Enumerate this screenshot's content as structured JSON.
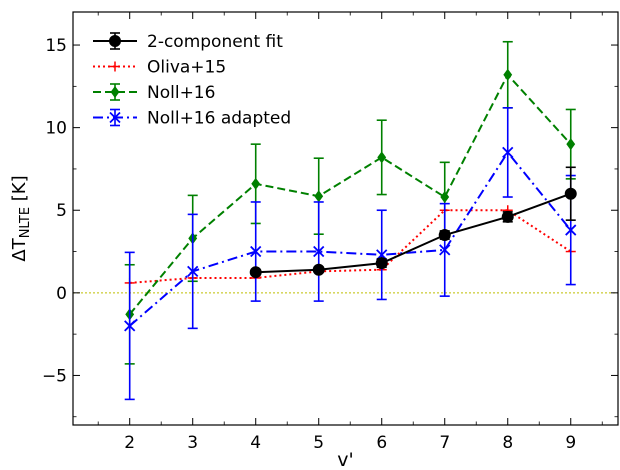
{
  "chart_data": {
    "type": "line",
    "xlabel": "v'",
    "ylabel": {
      "main": "ΔT",
      "sub": "NLTE",
      "unit": " [K]"
    },
    "xlim": [
      1.1,
      9.75
    ],
    "ylim": [
      -8,
      17
    ],
    "xticks": [
      "2",
      "3",
      "4",
      "5",
      "6",
      "7",
      "8",
      "9"
    ],
    "yticks": [
      "−5",
      "0",
      "5",
      "10",
      "15"
    ],
    "ytick_values": [
      -5,
      0,
      5,
      10,
      15
    ],
    "zero_line": 0,
    "grid": false,
    "legend_position": "top-left",
    "series": [
      {
        "name": "2-component fit",
        "color": "#000000",
        "linestyle": "solid",
        "marker": "circle",
        "points": [
          {
            "x": 4,
            "y": 1.25,
            "err": 0.15
          },
          {
            "x": 5,
            "y": 1.4,
            "err": 0.15
          },
          {
            "x": 6,
            "y": 1.8,
            "err": 0.25
          },
          {
            "x": 7,
            "y": 3.5,
            "err": 0.25
          },
          {
            "x": 8,
            "y": 4.6,
            "err": 0.3
          },
          {
            "x": 9,
            "y": 6.0,
            "err": 1.6
          }
        ]
      },
      {
        "name": "Oliva+15",
        "color": "#ff0000",
        "linestyle": "dotted",
        "marker": "plus",
        "points": [
          {
            "x": 2,
            "y": 0.6
          },
          {
            "x": 3,
            "y": 0.9
          },
          {
            "x": 4,
            "y": 0.9
          },
          {
            "x": 5,
            "y": 1.3
          },
          {
            "x": 6,
            "y": 1.4
          },
          {
            "x": 7,
            "y": 5.0
          },
          {
            "x": 8,
            "y": 5.0
          },
          {
            "x": 9,
            "y": 2.5
          }
        ]
      },
      {
        "name": "Noll+16",
        "color": "#008000",
        "linestyle": "dashed",
        "marker": "diamond",
        "points": [
          {
            "x": 2,
            "y": -1.3,
            "err": 3.0
          },
          {
            "x": 3,
            "y": 3.3,
            "err": 2.6
          },
          {
            "x": 4,
            "y": 6.6,
            "err": 2.4
          },
          {
            "x": 5,
            "y": 5.85,
            "err": 2.3
          },
          {
            "x": 6,
            "y": 8.2,
            "err": 2.25
          },
          {
            "x": 7,
            "y": 5.8,
            "err": 2.1
          },
          {
            "x": 8,
            "y": 13.2,
            "err": 2.0
          },
          {
            "x": 9,
            "y": 9.0,
            "err": 2.1
          }
        ]
      },
      {
        "name": "Noll+16 adapted",
        "color": "#0000ff",
        "linestyle": "dashdot",
        "marker": "x",
        "points": [
          {
            "x": 2,
            "y": -2.0,
            "err": 4.45
          },
          {
            "x": 3,
            "y": 1.3,
            "err": 3.45
          },
          {
            "x": 4,
            "y": 2.5,
            "err": 3.0
          },
          {
            "x": 5,
            "y": 2.5,
            "err": 3.0
          },
          {
            "x": 6,
            "y": 2.3,
            "err": 2.7
          },
          {
            "x": 7,
            "y": 2.6,
            "err": 2.8
          },
          {
            "x": 8,
            "y": 8.5,
            "err": 2.7
          },
          {
            "x": 9,
            "y": 3.8,
            "err": 3.3
          }
        ]
      }
    ]
  }
}
